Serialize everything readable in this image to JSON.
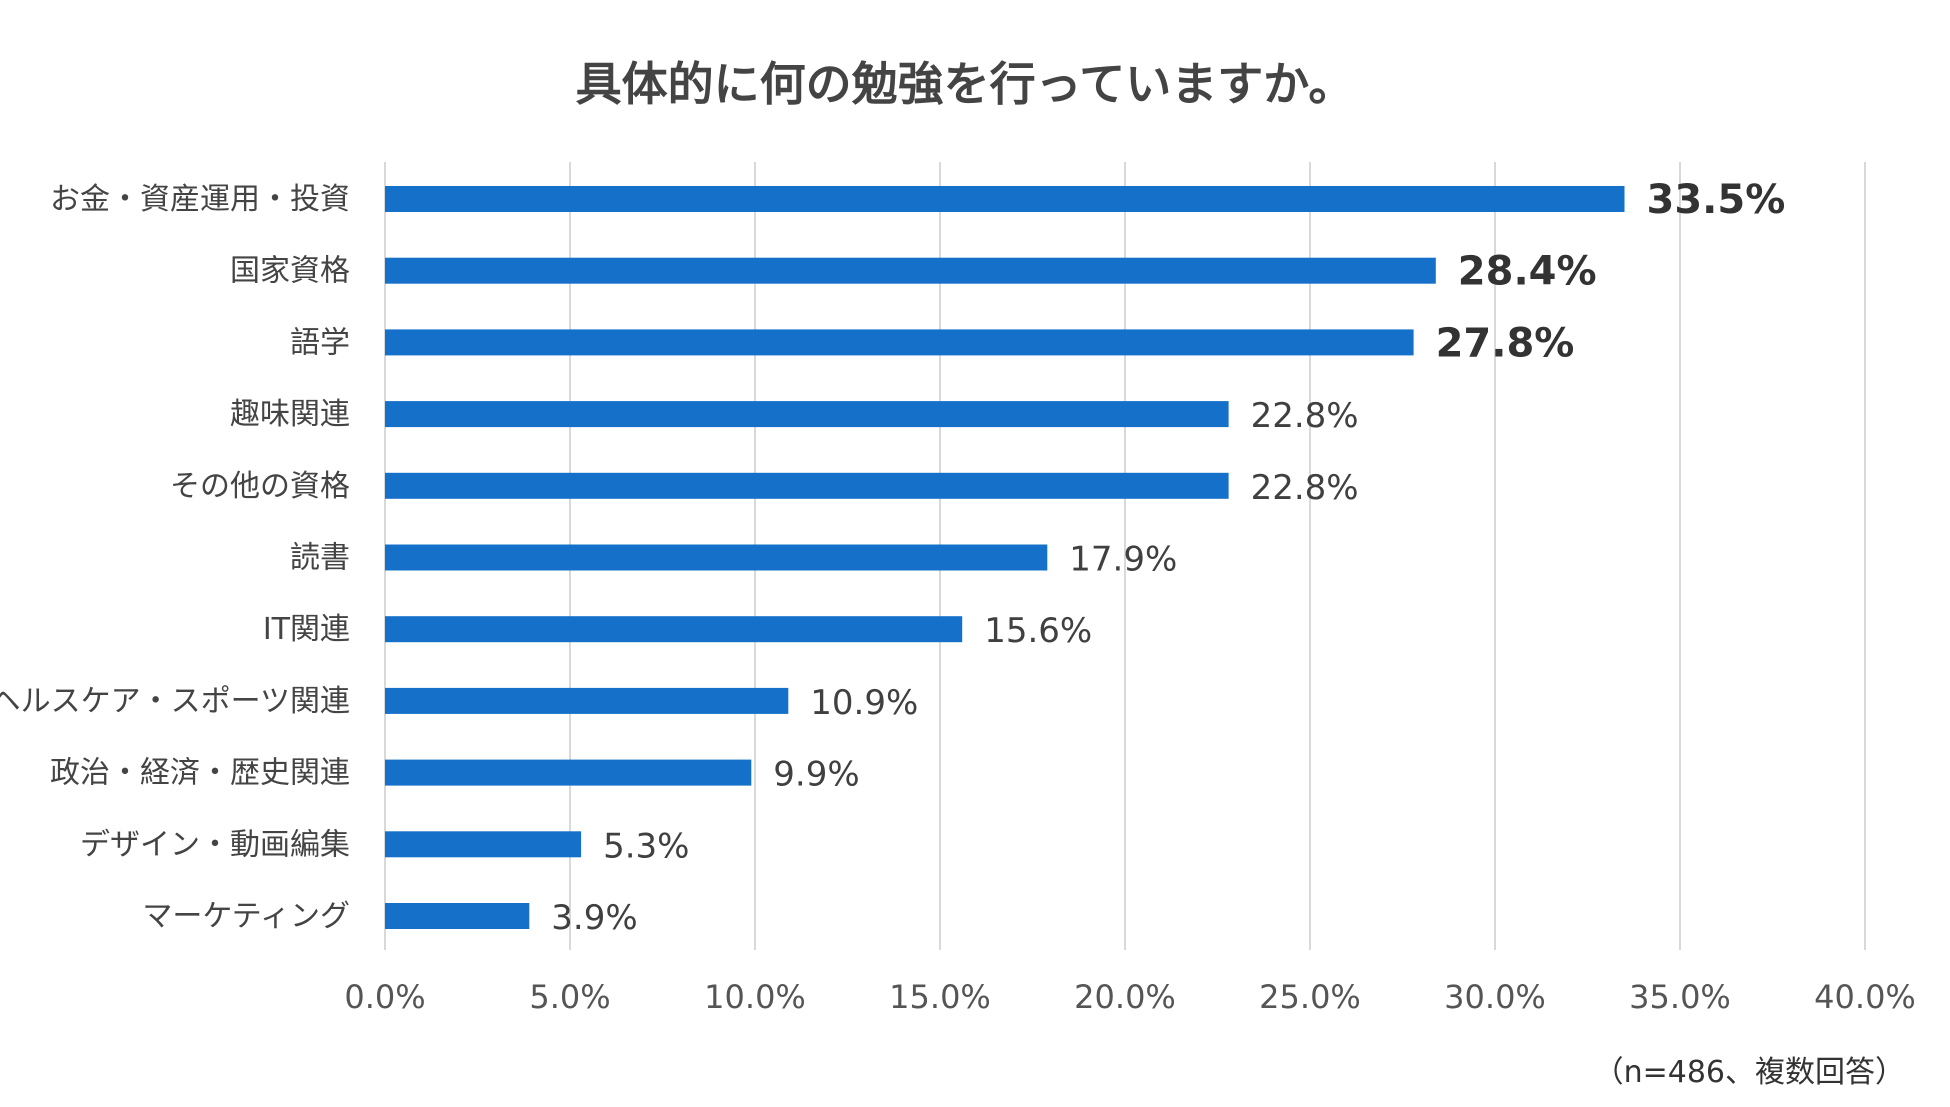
{
  "chart_data": {
    "type": "bar",
    "orientation": "horizontal",
    "title": "具体的に何の勉強を行っていますか。",
    "categories": [
      "お金・資産運用・投資",
      "国家資格",
      "語学",
      "趣味関連",
      "その他の資格",
      "読書",
      "IT関連",
      "ヘルスケア・スポーツ関連",
      "政治・経済・歴史関連",
      "デザイン・動画編集",
      "マーケティング"
    ],
    "values": [
      33.5,
      28.4,
      27.8,
      22.8,
      22.8,
      17.9,
      15.6,
      10.9,
      9.9,
      5.3,
      3.9
    ],
    "value_labels": [
      "33.5%",
      "28.4%",
      "27.8%",
      "22.8%",
      "22.8%",
      "17.9%",
      "15.6%",
      "10.9%",
      "9.9%",
      "5.3%",
      "3.9%"
    ],
    "highlighted": [
      true,
      true,
      true,
      false,
      false,
      false,
      false,
      false,
      false,
      false,
      false
    ],
    "xlim": [
      0,
      40
    ],
    "ticks": [
      0,
      5,
      10,
      15,
      20,
      25,
      30,
      35,
      40
    ],
    "tick_labels": [
      "0.0%",
      "5.0%",
      "10.0%",
      "15.0%",
      "20.0%",
      "25.0%",
      "30.0%",
      "35.0%",
      "40.0%"
    ],
    "grid": true,
    "bar_color": "#1470C8",
    "grid_color": "#D9D9D9",
    "note": "（n=486、複数回答）"
  }
}
